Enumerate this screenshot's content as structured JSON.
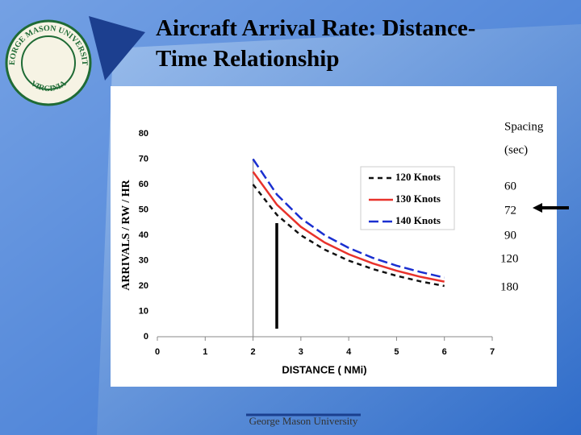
{
  "chart_data": {
    "type": "line",
    "title": "Aircraft Arrival Rate: Distance-Time Relationship",
    "x_label": "DISTANCE ( NMi)",
    "y_label": "ARRIVALS / RW / HR",
    "x": [
      2,
      2.5,
      3,
      3.5,
      4,
      4.5,
      5,
      5.5,
      6
    ],
    "series": [
      {
        "name": "120 Knots",
        "color": "#111111",
        "dash": "dashed",
        "values": [
          60,
          48,
          40,
          34.3,
          30,
          26.7,
          24,
          21.8,
          20
        ]
      },
      {
        "name": "130 Knots",
        "color": "#e8322b",
        "dash": "solid",
        "values": [
          65,
          52,
          43.3,
          37.1,
          32.5,
          28.9,
          26,
          23.6,
          21.7
        ]
      },
      {
        "name": "140 Knots",
        "color": "#1a2fd0",
        "dash": "long-dashed",
        "values": [
          70,
          56,
          46.7,
          40,
          35,
          31.1,
          28,
          25.5,
          23.3
        ]
      }
    ],
    "xlim": [
      0,
      7
    ],
    "xticks": [
      0,
      1,
      2,
      3,
      4,
      5,
      6,
      7
    ],
    "ylim": [
      0,
      80
    ],
    "yticks": [
      0,
      10,
      20,
      30,
      40,
      50,
      60,
      70,
      80
    ],
    "legend": "upper right",
    "spacing_header": [
      "Spacing",
      "(sec)"
    ],
    "spacing_labels": [
      "60",
      "72",
      "90",
      "120",
      "180"
    ]
  },
  "logo": {
    "ring_top": "GEORGE MASON UNIVERSITY",
    "ring_bottom": "VIRGINIA"
  },
  "footer": "George Mason University"
}
